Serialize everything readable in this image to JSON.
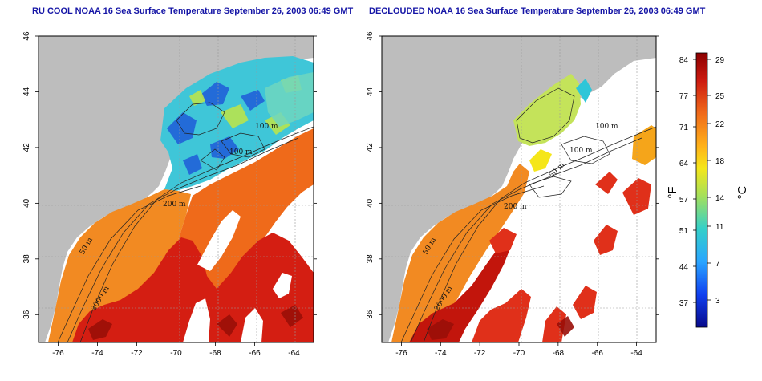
{
  "left_panel": {
    "title": "RU COOL NOAA 16 Sea Surface Temperature September 26, 2003 06:49 GMT",
    "contour_labels": [
      "100 m",
      "100 m",
      "200 m",
      "50 m",
      "2000 m"
    ]
  },
  "right_panel": {
    "title": "DECLOUDED NOAA 16 Sea Surface Temperature September 26, 2003 06:49 GMT",
    "contour_labels": [
      "100 m",
      "100 m",
      "50 m",
      "200 m",
      "50 m",
      "2000 m"
    ]
  },
  "map_axes": {
    "x_ticks": [
      "-76",
      "-74",
      "-72",
      "-70",
      "-68",
      "-66",
      "-64"
    ],
    "y_ticks": [
      "36",
      "38",
      "40",
      "42",
      "44",
      "46"
    ],
    "lon_range": [
      -77,
      -63
    ],
    "lat_range": [
      35,
      46
    ]
  },
  "colorbar": {
    "fahrenheit_unit": "°F",
    "celsius_unit": "°C",
    "fahrenheit_ticks": [
      "84",
      "77",
      "71",
      "64",
      "57",
      "51",
      "44",
      "37"
    ],
    "celsius_ticks": [
      "29",
      "25",
      "22",
      "18",
      "14",
      "11",
      "7",
      "3"
    ],
    "colors": [
      "#8b0000",
      "#cc1a10",
      "#f06a1a",
      "#ffb21a",
      "#f5e61a",
      "#a6e05a",
      "#35d0c8",
      "#2aa6ff",
      "#1040f0",
      "#080a8a"
    ]
  },
  "colors": {
    "land": "#bdbdbd",
    "cloud": "#ffffff",
    "title": "#1515a6"
  }
}
